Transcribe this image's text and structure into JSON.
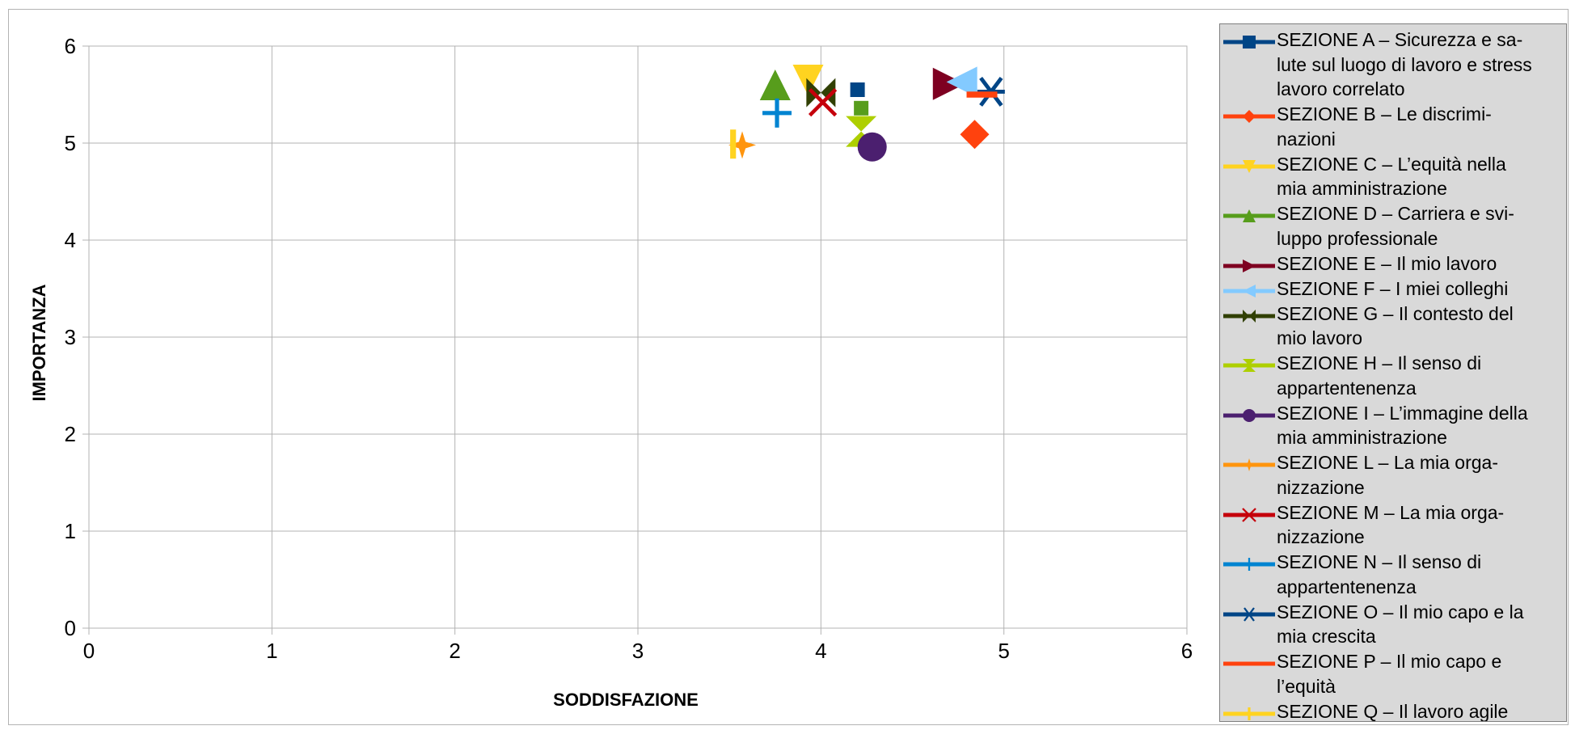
{
  "chart_data": {
    "type": "scatter",
    "title": "",
    "xlabel": "SODDISFAZIONE",
    "ylabel": "IMPORTANZA",
    "xlim": [
      0,
      6
    ],
    "ylim": [
      0,
      6
    ],
    "x_ticks": [
      "0",
      "1",
      "2",
      "3",
      "4",
      "5",
      "6"
    ],
    "y_ticks": [
      "0",
      "1",
      "2",
      "3",
      "4",
      "5",
      "6"
    ],
    "grid": true,
    "legend_position": "right",
    "series": [
      {
        "name": "SEZIONE A – Sicurezza e salute sul luogo di lavoro e stress lavoro correlato",
        "name_lines": [
          "SEZIONE A – Sicurezza e sa-",
          "lute sul luogo di lavoro e stress",
          "lavoro correlato"
        ],
        "color": "#004586",
        "marker": "square",
        "x": 4.2,
        "y": 5.55
      },
      {
        "name": "SEZIONE B – Le discriminazioni",
        "name_lines": [
          "SEZIONE B – Le discrimi-",
          "nazioni"
        ],
        "color": "#ff420e",
        "marker": "diamond",
        "x": 4.84,
        "y": 5.09
      },
      {
        "name": "SEZIONE C – L’equità nella mia amministrazione",
        "name_lines": [
          "SEZIONE C – L’equità nella",
          "mia amministrazione"
        ],
        "color": "#ffd320",
        "marker": "triangle-down",
        "x": 3.93,
        "y": 5.65
      },
      {
        "name": "SEZIONE D – Carriera e sviluppo professionale",
        "name_lines": [
          "SEZIONE D – Carriera e svi-",
          "luppo professionale"
        ],
        "color": "#579d1c",
        "marker": "triangle-up",
        "x": 3.75,
        "y": 5.6
      },
      {
        "name": "SEZIONE E – Il mio lavoro",
        "name_lines": [
          "SEZIONE E – Il mio lavoro"
        ],
        "color": "#7e0021",
        "marker": "triangle-right",
        "x": 4.7,
        "y": 5.61
      },
      {
        "name": "SEZIONE F – I miei colleghi",
        "name_lines": [
          "SEZIONE F – I miei colleghi"
        ],
        "color": "#83caff",
        "marker": "triangle-left",
        "x": 4.77,
        "y": 5.63
      },
      {
        "name": "SEZIONE G – Il contesto del mio lavoro",
        "name_lines": [
          "SEZIONE G – Il contesto del",
          "mio lavoro"
        ],
        "color": "#314004",
        "marker": "bowtie",
        "x": 4.0,
        "y": 5.52
      },
      {
        "name": "SEZIONE H – Il senso di appartentenenza",
        "name_lines": [
          "SEZIONE H – Il senso di",
          "appartentenenza"
        ],
        "color": "#aecf00",
        "marker": "hourglass",
        "x": 4.22,
        "y": 5.12
      },
      {
        "name": "SEZIONE I – L’immagine della mia amministrazione",
        "name_lines": [
          "SEZIONE I – L’immagine della",
          "mia amministrazione"
        ],
        "color": "#4b1f6f",
        "marker": "circle",
        "x": 4.28,
        "y": 4.96
      },
      {
        "name": "SEZIONE L – La mia organizzazione",
        "name_lines": [
          "SEZIONE L – La mia orga-",
          "nizzazione"
        ],
        "color": "#ff950e",
        "marker": "star",
        "x": 3.57,
        "y": 4.98
      },
      {
        "name": "SEZIONE M – La mia organizzazione",
        "name_lines": [
          "SEZIONE M – La mia orga-",
          "nizzazione"
        ],
        "color": "#c5000b",
        "marker": "x",
        "x": 4.01,
        "y": 5.42
      },
      {
        "name": "SEZIONE N – Il senso di appartentenenza",
        "name_lines": [
          "SEZIONE N – Il senso di",
          "appartentenenza"
        ],
        "color": "#0084d1",
        "marker": "plus",
        "x": 3.76,
        "y": 5.31
      },
      {
        "name": "SEZIONE O – Il mio capo e la mia crescita",
        "name_lines": [
          "SEZIONE O – Il mio capo e la",
          "mia crescita"
        ],
        "color": "#004586",
        "marker": "asterisk",
        "x": 4.93,
        "y": 5.53
      },
      {
        "name": "SEZIONE P – Il mio capo e l’equità",
        "name_lines": [
          "SEZIONE P – Il mio capo e",
          "l’equità"
        ],
        "color": "#ff420e",
        "marker": "hline",
        "x": 4.88,
        "y": 5.5
      },
      {
        "name": "SEZIONE Q – Il lavoro agile",
        "name_lines": [
          "SEZIONE Q – Il lavoro agile"
        ],
        "color": "#ffd320",
        "marker": "vline",
        "x": 3.52,
        "y": 4.99
      }
    ],
    "extra_points": [
      {
        "color": "#579d1c",
        "marker": "square",
        "x": 4.22,
        "y": 5.36
      }
    ]
  }
}
